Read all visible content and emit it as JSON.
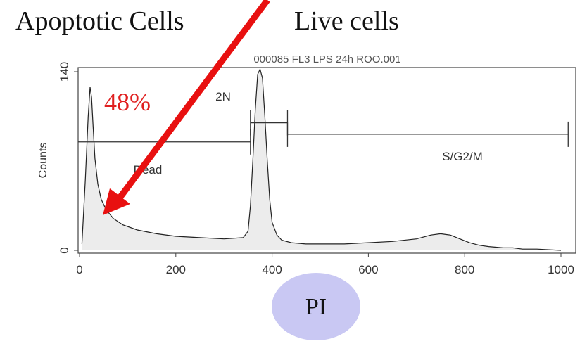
{
  "headings": {
    "apoptotic": "Apoptotic Cells",
    "live": "Live cells"
  },
  "annotation": {
    "percent": "48%",
    "percent_color": "#e02020",
    "arrow_color": "#e81010"
  },
  "bubble_label": "PI",
  "bubble_color": "#c9c8f3",
  "chart_data": {
    "type": "area",
    "title": "",
    "xlabel": "",
    "ylabel": "Counts",
    "xlim": [
      0,
      1023
    ],
    "ylim": [
      0,
      140
    ],
    "xticks": [
      0,
      200,
      400,
      600,
      800,
      1000
    ],
    "yticks": [
      0,
      140
    ],
    "fill_color": "#ececec",
    "line_color": "#222222",
    "series": [
      {
        "x": [
          5,
          12,
          18,
          22,
          25,
          28,
          32,
          38,
          45,
          55,
          70,
          90,
          120,
          160,
          200,
          250,
          300,
          340,
          350,
          355,
          360,
          365,
          370,
          375,
          380,
          385,
          390,
          395,
          400,
          410,
          420,
          440,
          470,
          500,
          550,
          600,
          650,
          700,
          730,
          750,
          770,
          790,
          810,
          830,
          850,
          880,
          900,
          920,
          950,
          1000
        ],
        "y": [
          5,
          55,
          105,
          128,
          120,
          98,
          72,
          52,
          40,
          32,
          25,
          20,
          16,
          13,
          11,
          10,
          9,
          10,
          15,
          35,
          70,
          110,
          138,
          142,
          135,
          105,
          70,
          40,
          22,
          12,
          8,
          6,
          5,
          5,
          5,
          6,
          7,
          9,
          12,
          13,
          12,
          9,
          6,
          4,
          3,
          2,
          2,
          1,
          1,
          0
        ]
      }
    ],
    "gates": [
      {
        "label": "Dead",
        "x1": 0,
        "x2": 355,
        "y": 85
      },
      {
        "label": "2N",
        "x1": 355,
        "x2": 432,
        "y": 100
      },
      {
        "label": "S/G2/M",
        "x1": 432,
        "x2": 1015,
        "y": 91
      }
    ],
    "header_text": "000085 FL3 LPS 24h ROO.001"
  }
}
